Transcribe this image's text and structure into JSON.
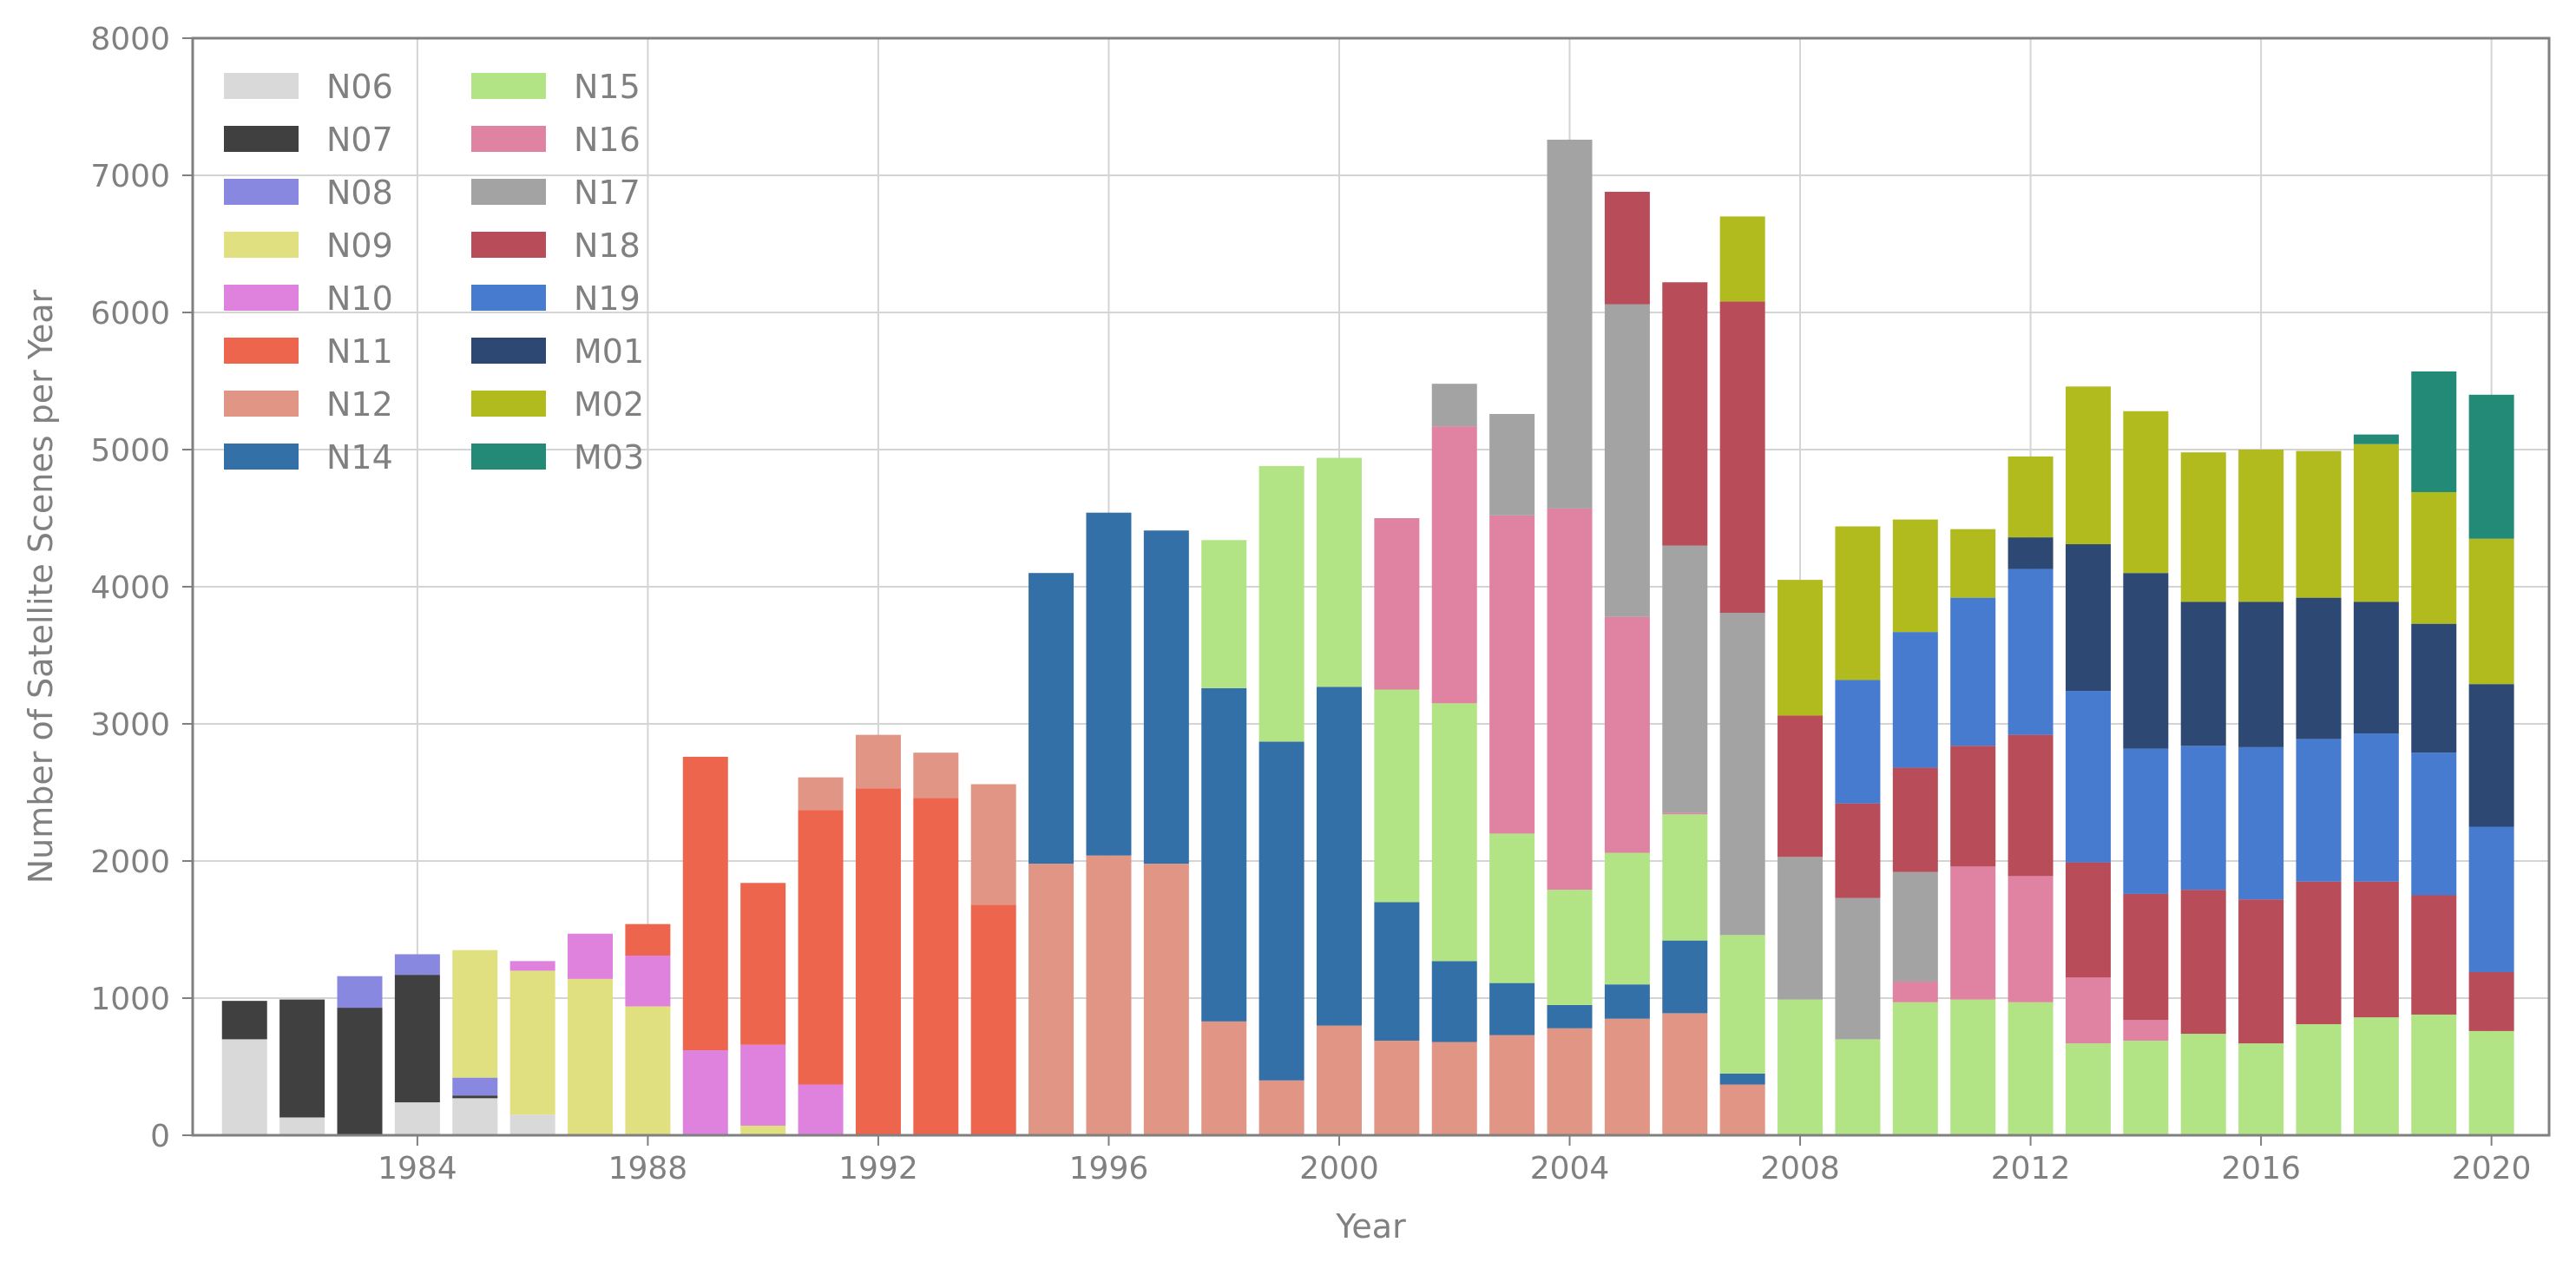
{
  "chart_data": {
    "type": "bar",
    "stacked": true,
    "title": "",
    "xlabel": "Year",
    "ylabel": "Number of Satellite Scenes per Year",
    "xlim": [
      1980.1,
      2021
    ],
    "ylim": [
      0,
      8000
    ],
    "xticks": [
      1984,
      1988,
      1992,
      1996,
      2000,
      2004,
      2008,
      2012,
      2016,
      2020
    ],
    "yticks": [
      0,
      1000,
      2000,
      3000,
      4000,
      5000,
      6000,
      7000,
      8000
    ],
    "grid": true,
    "legend_position": "upper-left",
    "series": [
      {
        "name": "N06",
        "color": "#d9d9d9",
        "values": [
          [
            1981,
            700
          ],
          [
            1982,
            130
          ],
          [
            1984,
            240
          ],
          [
            1985,
            270
          ],
          [
            1986,
            150
          ]
        ]
      },
      {
        "name": "N07",
        "color": "#404040",
        "values": [
          [
            1981,
            280
          ],
          [
            1982,
            860
          ],
          [
            1983,
            930
          ],
          [
            1984,
            930
          ],
          [
            1985,
            20
          ]
        ]
      },
      {
        "name": "N08",
        "color": "#8888e0",
        "values": [
          [
            1983,
            230
          ],
          [
            1984,
            150
          ],
          [
            1985,
            130
          ]
        ]
      },
      {
        "name": "N09",
        "color": "#e0e080",
        "values": [
          [
            1985,
            930
          ],
          [
            1986,
            1050
          ],
          [
            1987,
            1140
          ],
          [
            1988,
            940
          ],
          [
            1990,
            70
          ]
        ]
      },
      {
        "name": "N10",
        "color": "#de82de",
        "values": [
          [
            1986,
            70
          ],
          [
            1987,
            330
          ],
          [
            1988,
            370
          ],
          [
            1989,
            620
          ],
          [
            1990,
            590
          ],
          [
            1991,
            370
          ]
        ]
      },
      {
        "name": "N11",
        "color": "#ee654e",
        "values": [
          [
            1988,
            230
          ],
          [
            1989,
            2140
          ],
          [
            1990,
            1180
          ],
          [
            1991,
            2000
          ],
          [
            1992,
            2530
          ],
          [
            1993,
            2460
          ],
          [
            1994,
            1680
          ]
        ]
      },
      {
        "name": "N12",
        "color": "#e09585",
        "values": [
          [
            1991,
            240
          ],
          [
            1992,
            390
          ],
          [
            1993,
            330
          ],
          [
            1994,
            880
          ],
          [
            1995,
            1980
          ],
          [
            1996,
            2040
          ],
          [
            1997,
            1980
          ],
          [
            1998,
            830
          ],
          [
            1999,
            400
          ],
          [
            2000,
            800
          ],
          [
            2001,
            690
          ],
          [
            2002,
            680
          ],
          [
            2003,
            730
          ],
          [
            2004,
            780
          ],
          [
            2005,
            850
          ],
          [
            2006,
            890
          ],
          [
            2007,
            370
          ]
        ]
      },
      {
        "name": "N14",
        "color": "#3470a8",
        "values": [
          [
            1995,
            2120
          ],
          [
            1996,
            2500
          ],
          [
            1997,
            2430
          ],
          [
            1998,
            2430
          ],
          [
            1999,
            2470
          ],
          [
            2000,
            2470
          ],
          [
            2001,
            1010
          ],
          [
            2002,
            590
          ],
          [
            2003,
            380
          ],
          [
            2004,
            170
          ],
          [
            2005,
            250
          ],
          [
            2006,
            530
          ],
          [
            2007,
            80
          ]
        ]
      },
      {
        "name": "N15",
        "color": "#b2e385",
        "values": [
          [
            1998,
            1080
          ],
          [
            1999,
            2010
          ],
          [
            2000,
            1670
          ],
          [
            2001,
            1550
          ],
          [
            2002,
            1880
          ],
          [
            2003,
            1090
          ],
          [
            2004,
            840
          ],
          [
            2005,
            960
          ],
          [
            2006,
            920
          ],
          [
            2007,
            1010
          ],
          [
            2008,
            990
          ],
          [
            2009,
            700
          ],
          [
            2010,
            970
          ],
          [
            2011,
            990
          ],
          [
            2012,
            970
          ],
          [
            2013,
            670
          ],
          [
            2014,
            690
          ],
          [
            2015,
            740
          ],
          [
            2016,
            670
          ],
          [
            2017,
            810
          ],
          [
            2018,
            860
          ],
          [
            2019,
            880
          ],
          [
            2020,
            760
          ]
        ]
      },
      {
        "name": "N16",
        "color": "#e083a3",
        "values": [
          [
            2001,
            1250
          ],
          [
            2002,
            2020
          ],
          [
            2003,
            2320
          ],
          [
            2004,
            2780
          ],
          [
            2005,
            1720
          ],
          [
            2006,
            10
          ],
          [
            2010,
            150
          ],
          [
            2011,
            970
          ],
          [
            2012,
            920
          ],
          [
            2013,
            480
          ],
          [
            2014,
            150
          ]
        ]
      },
      {
        "name": "N17",
        "color": "#a3a3a3",
        "values": [
          [
            2002,
            310
          ],
          [
            2003,
            740
          ],
          [
            2004,
            2690
          ],
          [
            2005,
            2280
          ],
          [
            2006,
            1950
          ],
          [
            2007,
            2350
          ],
          [
            2008,
            1040
          ],
          [
            2009,
            1030
          ],
          [
            2010,
            800
          ]
        ]
      },
      {
        "name": "N18",
        "color": "#b94c59",
        "values": [
          [
            2005,
            820
          ],
          [
            2006,
            1920
          ],
          [
            2007,
            2270
          ],
          [
            2008,
            1030
          ],
          [
            2009,
            690
          ],
          [
            2010,
            760
          ],
          [
            2011,
            880
          ],
          [
            2012,
            1030
          ],
          [
            2013,
            840
          ],
          [
            2014,
            920
          ],
          [
            2015,
            1050
          ],
          [
            2016,
            1050
          ],
          [
            2017,
            1040
          ],
          [
            2018,
            990
          ],
          [
            2019,
            870
          ],
          [
            2020,
            430
          ]
        ]
      },
      {
        "name": "N19",
        "color": "#467bd0",
        "values": [
          [
            2009,
            900
          ],
          [
            2010,
            990
          ],
          [
            2011,
            1080
          ],
          [
            2012,
            1210
          ],
          [
            2013,
            1250
          ],
          [
            2014,
            1060
          ],
          [
            2015,
            1050
          ],
          [
            2016,
            1110
          ],
          [
            2017,
            1040
          ],
          [
            2018,
            1080
          ],
          [
            2019,
            1040
          ],
          [
            2020,
            1060
          ]
        ]
      },
      {
        "name": "M01",
        "color": "#2d4872",
        "values": [
          [
            2012,
            230
          ],
          [
            2013,
            1070
          ],
          [
            2014,
            1280
          ],
          [
            2015,
            1050
          ],
          [
            2016,
            1060
          ],
          [
            2017,
            1030
          ],
          [
            2018,
            960
          ],
          [
            2019,
            940
          ],
          [
            2020,
            1040
          ]
        ]
      },
      {
        "name": "M02",
        "color": "#b2bb1e",
        "values": [
          [
            2007,
            620
          ],
          [
            2008,
            990
          ],
          [
            2009,
            1120
          ],
          [
            2010,
            820
          ],
          [
            2011,
            500
          ],
          [
            2012,
            590
          ],
          [
            2013,
            1150
          ],
          [
            2014,
            1180
          ],
          [
            2015,
            1090
          ],
          [
            2016,
            1110
          ],
          [
            2017,
            1070
          ],
          [
            2018,
            1150
          ],
          [
            2019,
            960
          ],
          [
            2020,
            1060
          ]
        ]
      },
      {
        "name": "M03",
        "color": "#238a78",
        "values": [
          [
            2018,
            70
          ],
          [
            2019,
            880
          ],
          [
            2020,
            1050
          ]
        ]
      }
    ]
  }
}
